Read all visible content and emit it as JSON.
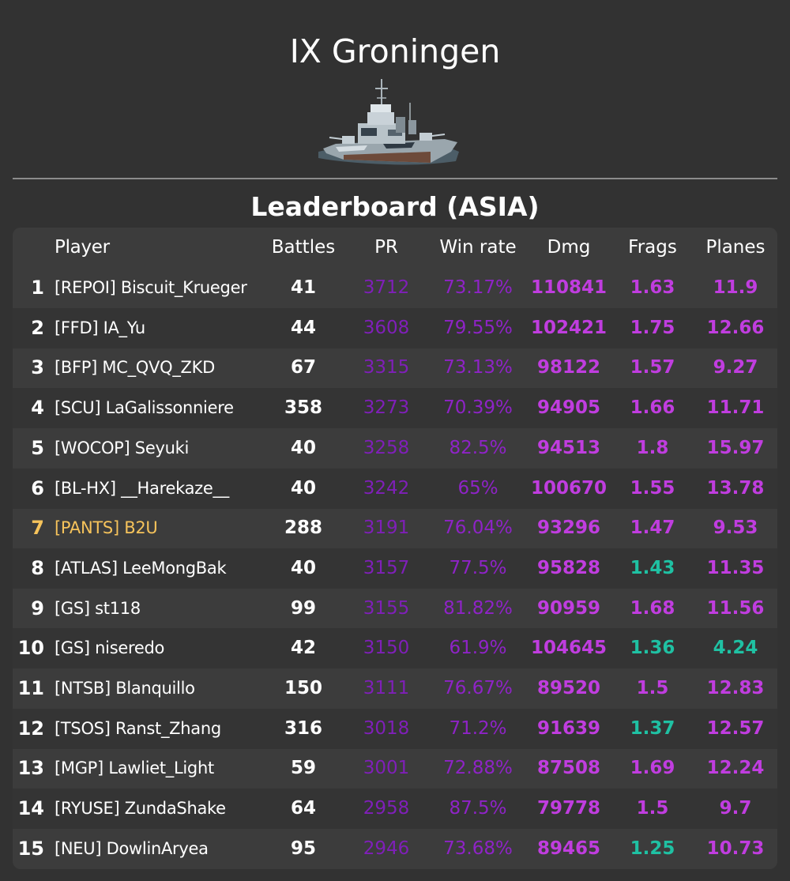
{
  "ship": {
    "title": "IX Groningen",
    "image_icon": "destroyer-ship-icon"
  },
  "leaderboard": {
    "title": "Leaderboard (ASIA)",
    "columns": {
      "rank": "",
      "player": "Player",
      "battles": "Battles",
      "pr": "PR",
      "winrate": "Win rate",
      "dmg": "Dmg",
      "frags": "Frags",
      "planes": "Planes"
    },
    "rows": [
      {
        "rank": "1",
        "player": "[REPOI] Biscuit_Krueger",
        "battles": "41",
        "pr": "3712",
        "winrate": "73.17%",
        "dmg": "110841",
        "frags": "1.63",
        "planes": "11.9"
      },
      {
        "rank": "2",
        "player": "[FFD] IA_Yu",
        "battles": "44",
        "pr": "3608",
        "winrate": "79.55%",
        "dmg": "102421",
        "frags": "1.75",
        "planes": "12.66"
      },
      {
        "rank": "3",
        "player": "[BFP] MC_QVQ_ZKD",
        "battles": "67",
        "pr": "3315",
        "winrate": "73.13%",
        "dmg": "98122",
        "frags": "1.57",
        "planes": "9.27"
      },
      {
        "rank": "4",
        "player": "[SCU] LaGalissonniere",
        "battles": "358",
        "pr": "3273",
        "winrate": "70.39%",
        "dmg": "94905",
        "frags": "1.66",
        "planes": "11.71"
      },
      {
        "rank": "5",
        "player": "[WOCOP] Seyuki",
        "battles": "40",
        "pr": "3258",
        "winrate": "82.5%",
        "dmg": "94513",
        "frags": "1.8",
        "planes": "15.97"
      },
      {
        "rank": "6",
        "player": "[BL-HX] __Harekaze__",
        "battles": "40",
        "pr": "3242",
        "winrate": "65%",
        "dmg": "100670",
        "frags": "1.55",
        "planes": "13.78"
      },
      {
        "rank": "7",
        "player": "[PANTS] B2U",
        "battles": "288",
        "pr": "3191",
        "winrate": "76.04%",
        "dmg": "93296",
        "frags": "1.47",
        "planes": "9.53"
      },
      {
        "rank": "8",
        "player": "[ATLAS] LeeMongBak",
        "battles": "40",
        "pr": "3157",
        "winrate": "77.5%",
        "dmg": "95828",
        "frags": "1.43",
        "planes": "11.35"
      },
      {
        "rank": "9",
        "player": "[GS] st118",
        "battles": "99",
        "pr": "3155",
        "winrate": "81.82%",
        "dmg": "90959",
        "frags": "1.68",
        "planes": "11.56"
      },
      {
        "rank": "10",
        "player": "[GS] niseredo",
        "battles": "42",
        "pr": "3150",
        "winrate": "61.9%",
        "dmg": "104645",
        "frags": "1.36",
        "planes": "4.24"
      },
      {
        "rank": "11",
        "player": "[NTSB] Blanquillo",
        "battles": "150",
        "pr": "3111",
        "winrate": "76.67%",
        "dmg": "89520",
        "frags": "1.5",
        "planes": "12.83"
      },
      {
        "rank": "12",
        "player": "[TSOS] Ranst_Zhang",
        "battles": "316",
        "pr": "3018",
        "winrate": "71.2%",
        "dmg": "91639",
        "frags": "1.37",
        "planes": "12.57"
      },
      {
        "rank": "13",
        "player": "[MGP] Lawliet_Light",
        "battles": "59",
        "pr": "3001",
        "winrate": "72.88%",
        "dmg": "87508",
        "frags": "1.69",
        "planes": "12.24"
      },
      {
        "rank": "14",
        "player": "[RYUSE] ZundaShake",
        "battles": "64",
        "pr": "2958",
        "winrate": "87.5%",
        "dmg": "79778",
        "frags": "1.5",
        "planes": "9.7"
      },
      {
        "rank": "15",
        "player": "[NEU] DowlinAryea",
        "battles": "95",
        "pr": "2946",
        "winrate": "73.68%",
        "dmg": "89465",
        "frags": "1.25",
        "planes": "10.73"
      }
    ]
  },
  "colors": {
    "background": "#323232",
    "table_bg": "#3c3c3c",
    "row_alt": "#343434",
    "pr": "#7f1fb8",
    "winrate": "#8e23c6",
    "stat_magenta": "#c03ddf",
    "stat_teal": "#1fc1a3",
    "highlight_player": "#f6c35b"
  }
}
